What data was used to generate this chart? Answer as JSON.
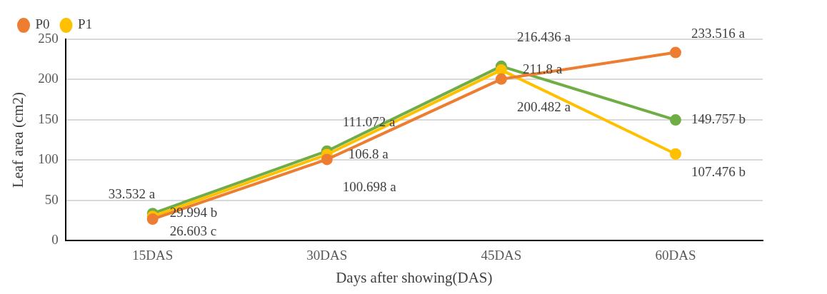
{
  "chart_data": {
    "type": "line",
    "xlabel": "Days after showing(DAS)",
    "ylabel": "Leaf area (cm2)",
    "categories": [
      "15DAS",
      "30DAS",
      "45DAS",
      "60DAS"
    ],
    "series": [
      {
        "name": "P0",
        "color": "#ed7d31",
        "values": [
          26.603,
          100.698,
          200.482,
          233.516
        ],
        "value_labels": [
          "26.603 c",
          "100.698 a",
          "200.482 a",
          "233.516 a"
        ]
      },
      {
        "name": "P1",
        "color": "#ffc000",
        "values": [
          29.994,
          106.8,
          211.8,
          107.476
        ],
        "value_labels": [
          "29.994 b",
          "106.8 a",
          "211.8 a",
          "107.476 b"
        ]
      },
      {
        "color": "#70ad47",
        "values": [
          33.532,
          111.072,
          216.436,
          149.757
        ],
        "value_labels": [
          "33.532 a",
          "111.072 a",
          "216.436 a",
          "149.757 b"
        ]
      }
    ],
    "ylim": [
      0,
      250
    ],
    "yticks": [
      0,
      50,
      100,
      150,
      200,
      250
    ],
    "grid": "y",
    "legend": "top left",
    "marker": "circle",
    "line_style": "solid"
  }
}
